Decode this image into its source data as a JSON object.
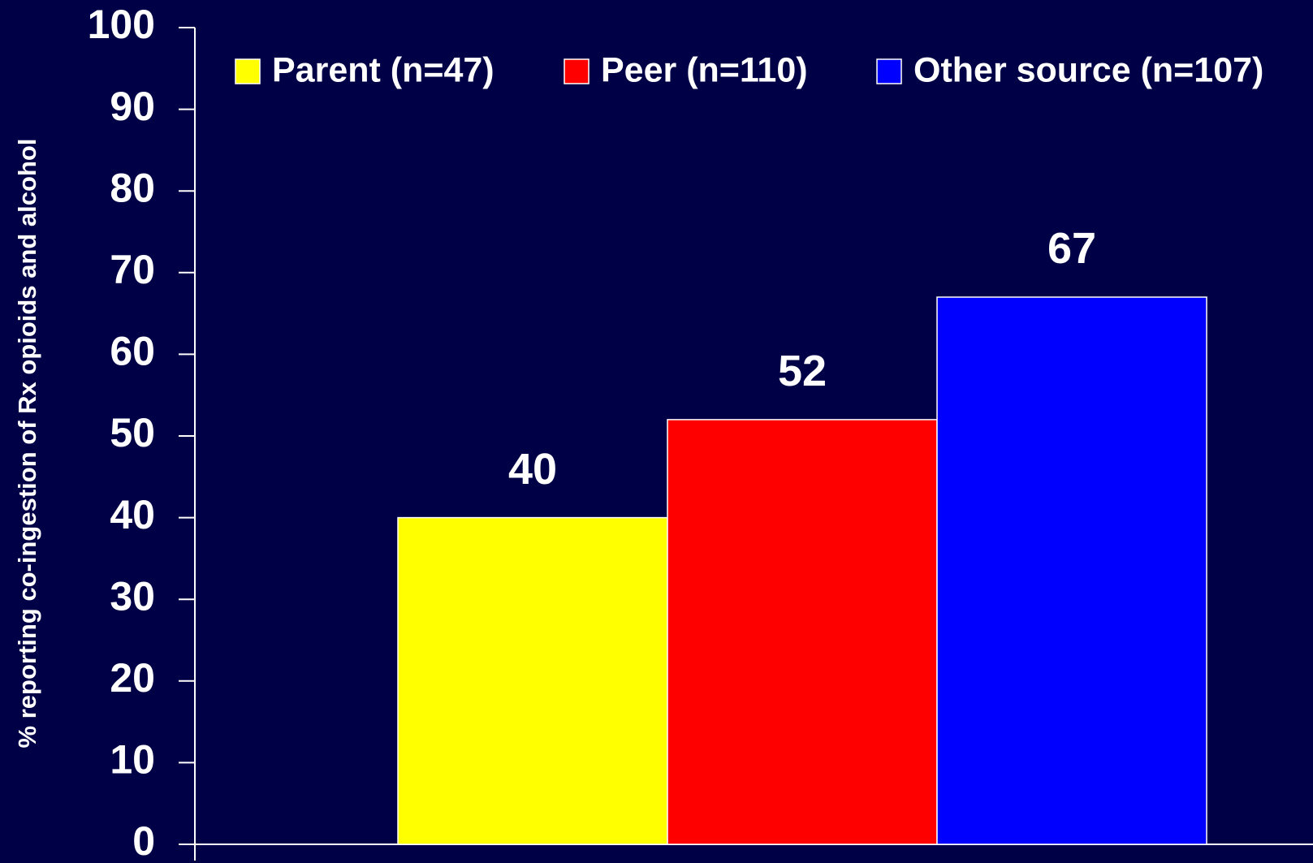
{
  "chart_data": {
    "type": "bar",
    "y_label": "% reporting co-ingestion of Rx opioids and alcohol",
    "categories": [
      null
    ],
    "series": [
      {
        "name": "Parent (n=47)",
        "color": "#ffff00",
        "values": [
          40
        ]
      },
      {
        "name": "Peer (n=110)",
        "color": "#ff0000",
        "values": [
          52
        ]
      },
      {
        "name": "Other source (n=107)",
        "color": "#0000ff",
        "values": [
          67
        ]
      }
    ],
    "ylim": [
      0,
      100
    ],
    "yticks": [
      0,
      10,
      20,
      30,
      40,
      50,
      60,
      70,
      80,
      90,
      100
    ],
    "grid": false,
    "legend": "top",
    "data_labels": true
  }
}
